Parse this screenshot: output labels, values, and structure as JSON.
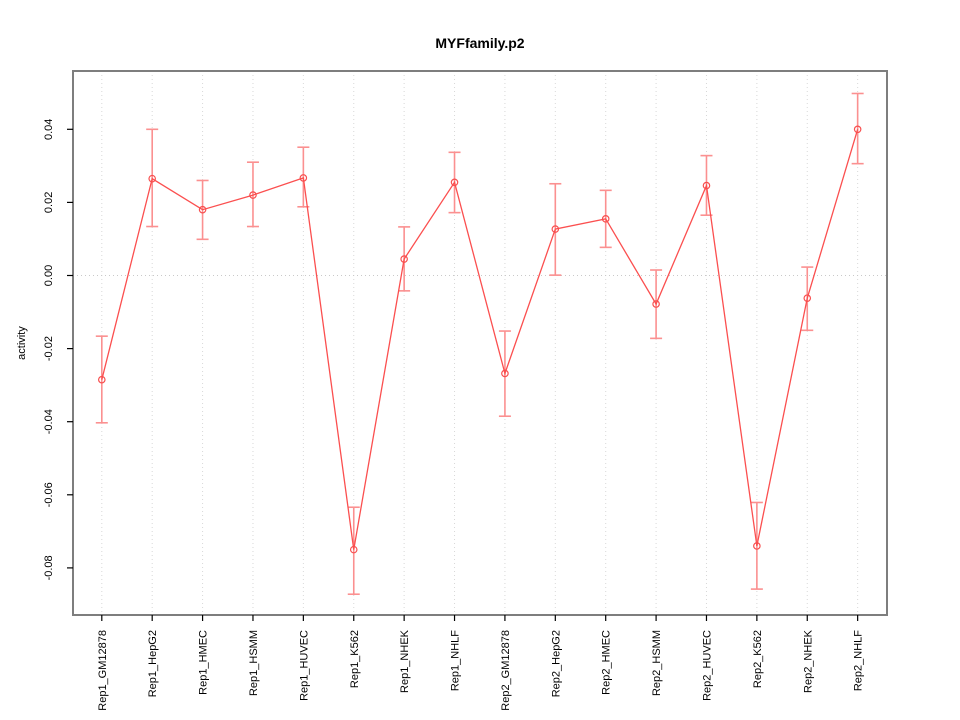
{
  "title": "MYFfamily.p2",
  "chart_data": {
    "type": "line",
    "title": "MYFfamily.p2",
    "xlabel": "",
    "ylabel": "activity",
    "categories": [
      "Rep1_GM12878",
      "Rep1_HepG2",
      "Rep1_HMEC",
      "Rep1_HSMM",
      "Rep1_HUVEC",
      "Rep1_K562",
      "Rep1_NHEK",
      "Rep1_NHLF",
      "Rep2_GM12878",
      "Rep2_HepG2",
      "Rep2_HMEC",
      "Rep2_HSMM",
      "Rep2_HUVEC",
      "Rep2_K562",
      "Rep2_NHEK",
      "Rep2_NHLF"
    ],
    "series": [
      {
        "name": "activity",
        "values": [
          -0.0285,
          0.0265,
          0.018,
          0.022,
          0.0267,
          -0.075,
          0.0045,
          0.0255,
          -0.0268,
          0.0127,
          0.0155,
          -0.0078,
          0.0246,
          -0.074,
          -0.0062,
          0.04
        ],
        "ci_lower": [
          -0.0403,
          0.0134,
          0.0099,
          0.0134,
          0.0188,
          -0.0872,
          -0.0042,
          0.0172,
          -0.0385,
          0.0001,
          0.0077,
          -0.0172,
          0.0165,
          -0.0858,
          -0.015,
          0.0306
        ],
        "ci_upper": [
          -0.0166,
          0.04,
          0.026,
          0.031,
          0.0351,
          -0.0634,
          0.0133,
          0.0337,
          -0.0152,
          0.0251,
          0.0233,
          0.0015,
          0.0328,
          -0.0621,
          0.0023,
          0.0498
        ]
      }
    ],
    "yticks": [
      0.04,
      0.02,
      0.0,
      -0.02,
      -0.04,
      -0.06,
      -0.08
    ],
    "ylim": [
      -0.093,
      0.056
    ],
    "grid": "vertical dotted gridline at each category; dotted horizontal reference line at y=0 only",
    "legend": "none",
    "marker": "open-circle",
    "colors": {
      "line": "#fb4f4f",
      "error_bar": "#fb9090",
      "point_stroke": "#f84f4f",
      "gridline": "#d8d8d8",
      "zero_line": "#c9c9c9",
      "frame": "#7e7e7e",
      "tick": "#000000",
      "background": "#ffffff"
    }
  }
}
